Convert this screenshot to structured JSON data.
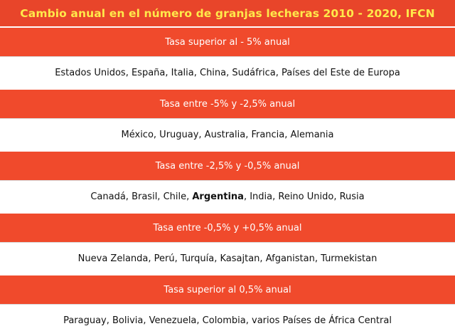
{
  "title": "Cambio anual en el número de granjas lecheras 2010 - 2020, IFCN",
  "colors": {
    "title_bg": "#e8452a",
    "title_text": "#ffe94a",
    "header_bg": "#f04a2c",
    "header_text": "#ffffff",
    "row_bg": "#ffffff"
  },
  "sections": [
    {
      "header": "Tasa superior al - 5% anual",
      "countries_before": "Estados Unidos, España, Italia, China, Sudáfrica, Países del Este de Europa",
      "countries_bold": "",
      "countries_after": ""
    },
    {
      "header": "Tasa entre -5% y -2,5% anual",
      "countries_before": "México, Uruguay, Australia, Francia, Alemania",
      "countries_bold": "",
      "countries_after": ""
    },
    {
      "header": "Tasa entre -2,5% y -0,5% anual",
      "countries_before": "Canadá, Brasil, Chile, ",
      "countries_bold": "Argentina",
      "countries_after": ", India, Reino Unido, Rusia"
    },
    {
      "header": "Tasa entre -0,5% y +0,5% anual",
      "countries_before": "Nueva Zelanda, Perú, Turquía, Kasajtan, Afganistan, Turmekistan",
      "countries_bold": "",
      "countries_after": ""
    },
    {
      "header": "Tasa superior al 0,5% anual",
      "countries_before": "Paraguay, Bolivia, Venezuela, Colombia, varios Países de África Central",
      "countries_bold": "",
      "countries_after": ""
    }
  ]
}
